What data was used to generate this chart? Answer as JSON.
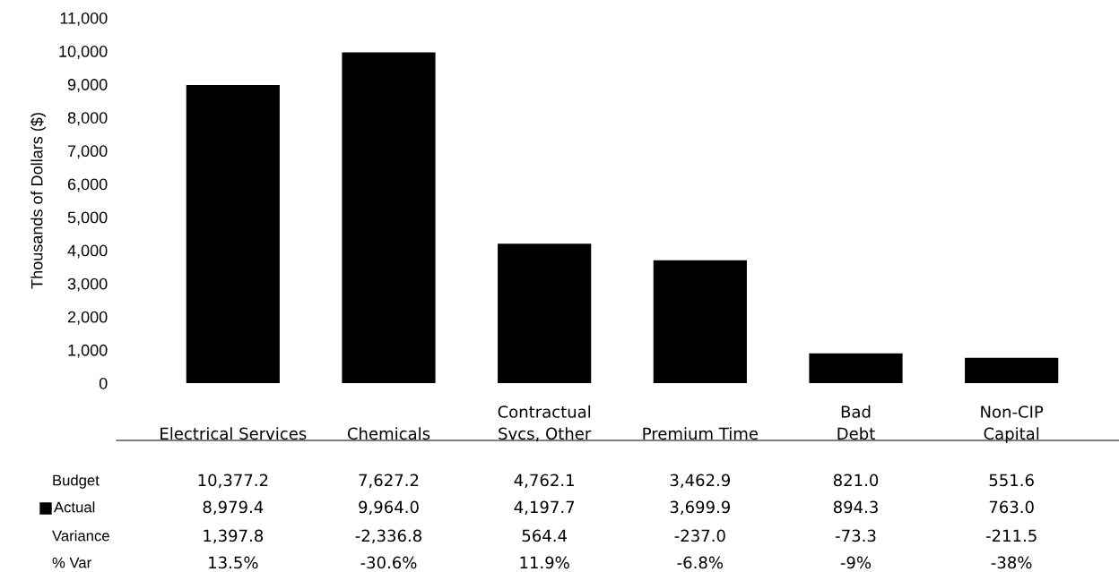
{
  "chart_data": {
    "type": "bar",
    "ylabel": "Thousands of Dollars ($)",
    "categories": [
      "Electrical Services",
      "Chemicals",
      "Contractual\nSvcs, Other",
      "Premium Time",
      "Bad\nDebt",
      "Non-CIP\nCapital"
    ],
    "series": [
      {
        "name": "Actual",
        "color": "#000000",
        "values": [
          8979.4,
          9964.0,
          4197.7,
          3699.9,
          894.3,
          763.0
        ],
        "value_labels": [
          "8,979.4",
          "9,964.0",
          "4,197.7",
          "3,699.9",
          "894.3",
          "763.0"
        ]
      }
    ],
    "ylim": [
      0,
      11000
    ],
    "yticks": [
      0,
      {
        "value": 1000,
        "label": "1,000"
      },
      {
        "value": 2000,
        "label": "2,000"
      },
      {
        "value": 3000,
        "label": "3,000"
      },
      {
        "value": 4000,
        "label": "4,000"
      },
      {
        "value": 5000,
        "label": "5,000"
      },
      {
        "value": 6000,
        "label": "6,000"
      },
      {
        "value": 7000,
        "label": "7,000"
      },
      {
        "value": 8000,
        "label": "8,000"
      },
      {
        "value": 9000,
        "label": "9,000"
      },
      {
        "value": 10000,
        "label": "10,000"
      },
      {
        "value": 11000,
        "label": "11,000"
      }
    ],
    "annotations": [
      "Budget",
      "10,377.2",
      "7,627.2",
      "4,762.1",
      "3,462.9",
      "821.0",
      "551.6",
      "Variance",
      "1,397.8",
      "-2,336.8",
      "564.4",
      "-237.0",
      "-73.3",
      "-211.5",
      "% Var",
      "13.5%",
      "-30.6%",
      "11.9%",
      "-6.8%",
      "-9%",
      "-38%"
    ],
    "grid": false,
    "legend": "bottom left"
  }
}
